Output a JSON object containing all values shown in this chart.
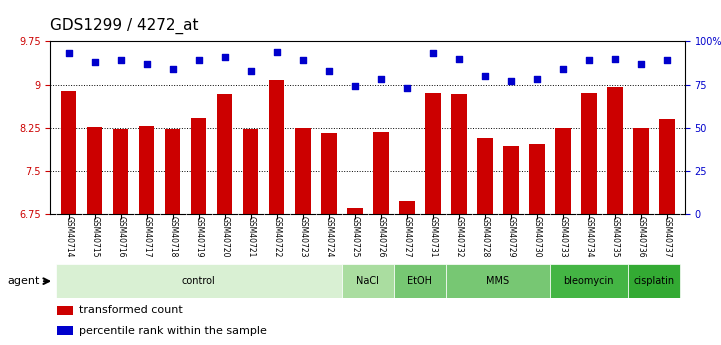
{
  "title": "GDS1299 / 4272_at",
  "samples": [
    "GSM40714",
    "GSM40715",
    "GSM40716",
    "GSM40717",
    "GSM40718",
    "GSM40719",
    "GSM40720",
    "GSM40721",
    "GSM40722",
    "GSM40723",
    "GSM40724",
    "GSM40725",
    "GSM40726",
    "GSM40727",
    "GSM40731",
    "GSM40732",
    "GSM40728",
    "GSM40729",
    "GSM40730",
    "GSM40733",
    "GSM40734",
    "GSM40735",
    "GSM40736",
    "GSM40737"
  ],
  "bar_values": [
    8.88,
    8.27,
    8.23,
    8.28,
    8.22,
    8.41,
    8.84,
    8.22,
    9.08,
    8.25,
    8.15,
    6.85,
    8.17,
    6.97,
    8.85,
    8.84,
    8.07,
    7.93,
    7.97,
    8.25,
    8.85,
    8.96,
    8.24,
    8.4
  ],
  "percentile_values": [
    93,
    88,
    89,
    87,
    84,
    89,
    91,
    83,
    94,
    89,
    83,
    74,
    78,
    73,
    93,
    90,
    80,
    77,
    78,
    84,
    89,
    90,
    87,
    89
  ],
  "agents": [
    {
      "label": "control",
      "start": 0,
      "end": 11,
      "color": "#d9f0d3"
    },
    {
      "label": "NaCl",
      "start": 11,
      "end": 13,
      "color": "#aadda0"
    },
    {
      "label": "EtOH",
      "start": 13,
      "end": 15,
      "color": "#77c773"
    },
    {
      "label": "MMS",
      "start": 15,
      "end": 19,
      "color": "#77c773"
    },
    {
      "label": "bleomycin",
      "start": 19,
      "end": 22,
      "color": "#44b544"
    },
    {
      "label": "cisplatin",
      "start": 22,
      "end": 24,
      "color": "#33aa33"
    }
  ],
  "bar_color": "#cc0000",
  "dot_color": "#0000cc",
  "ylim_left": [
    6.75,
    9.75
  ],
  "ylim_right": [
    0,
    100
  ],
  "yticks_left": [
    6.75,
    7.5,
    8.25,
    9.0,
    9.75
  ],
  "ytick_labels_left": [
    "6.75",
    "7.5",
    "8.25",
    "9",
    "9.75"
  ],
  "yticks_right": [
    0,
    25,
    50,
    75,
    100
  ],
  "ytick_labels_right": [
    "0",
    "25",
    "50",
    "75",
    "100%"
  ],
  "agent_label": "agent",
  "legend_items": [
    {
      "color": "#cc0000",
      "label": "transformed count"
    },
    {
      "color": "#0000cc",
      "label": "percentile rank within the sample"
    }
  ],
  "bar_width": 0.6,
  "dot_size": 20,
  "background_color": "#ffffff",
  "plot_bg_color": "#ffffff",
  "grid_color": "#000000",
  "title_fontsize": 11,
  "tick_fontsize": 7,
  "label_fontsize": 8
}
